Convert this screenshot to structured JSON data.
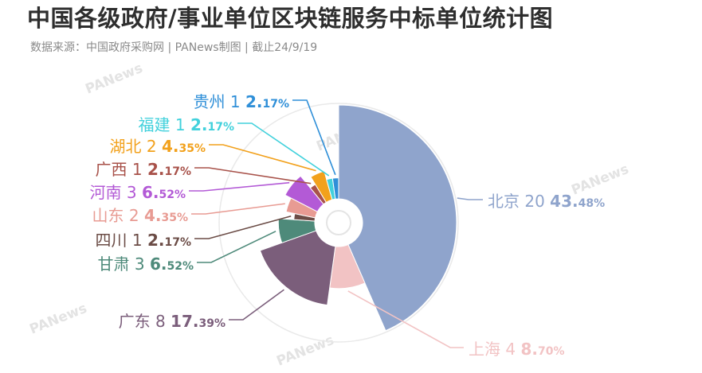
{
  "header": {
    "title": "中国各级政府/事业单位区块链服务中标单位统计图",
    "subtitle": "数据来源：中国政府采购网 | PANews制图 | 截止24/9/19"
  },
  "watermark": {
    "text": "PANews"
  },
  "chart_data": {
    "type": "pie",
    "variant": "rose",
    "title": "中国各级政府/事业单位区块链服务中标单位统计图",
    "subtitle": "数据来源：中国政府采购网 | PANews制图 | 截止24/9/19",
    "slices": [
      {
        "name": "北京",
        "count": "20",
        "value": 43.48,
        "pct": "43.",
        "pct_small": "48%",
        "color": "#8fa4cc"
      },
      {
        "name": "上海",
        "count": "4",
        "value": 8.7,
        "pct": "8.",
        "pct_small": "70%",
        "color": "#f2c3c4"
      },
      {
        "name": "广东",
        "count": "8",
        "value": 17.39,
        "pct": "17.",
        "pct_small": "39%",
        "color": "#7b5e7b"
      },
      {
        "name": "甘肃",
        "count": "3",
        "value": 6.52,
        "pct": "6.",
        "pct_small": "52%",
        "color": "#4e8a7a"
      },
      {
        "name": "四川",
        "count": "1",
        "value": 2.17,
        "pct": "2.",
        "pct_small": "17%",
        "color": "#6b4c46"
      },
      {
        "name": "山东",
        "count": "2",
        "value": 4.35,
        "pct": "4.",
        "pct_small": "35%",
        "color": "#e89b93"
      },
      {
        "name": "河南",
        "count": "3",
        "value": 6.52,
        "pct": "6.",
        "pct_small": "52%",
        "color": "#b35ad6"
      },
      {
        "name": "广西",
        "count": "1",
        "value": 2.17,
        "pct": "2.",
        "pct_small": "17%",
        "color": "#a8524a"
      },
      {
        "name": "湖北",
        "count": "2",
        "value": 4.35,
        "pct": "4.",
        "pct_small": "35%",
        "color": "#f2a11c"
      },
      {
        "name": "福建",
        "count": "1",
        "value": 2.17,
        "pct": "2.",
        "pct_small": "17%",
        "color": "#42d1dc"
      },
      {
        "name": "贵州",
        "count": "1",
        "value": 2.17,
        "pct": "2.",
        "pct_small": "17%",
        "color": "#2f8fd8"
      }
    ]
  }
}
